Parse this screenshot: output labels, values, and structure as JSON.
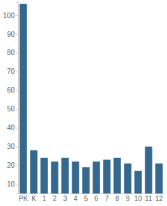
{
  "chart_data": {
    "type": "bar",
    "categories": [
      "PK",
      "K",
      "1",
      "2",
      "3",
      "4",
      "5",
      "6",
      "7",
      "8",
      "9",
      "10",
      "11",
      "12"
    ],
    "values": [
      106,
      28,
      24,
      22,
      24,
      22,
      19,
      22,
      23,
      24,
      21,
      17,
      30,
      21
    ],
    "color": "#35688e",
    "ylim": [
      5,
      107
    ],
    "yticks": [
      10,
      20,
      30,
      40,
      50,
      60,
      70,
      80,
      90,
      100
    ],
    "grid": false
  }
}
